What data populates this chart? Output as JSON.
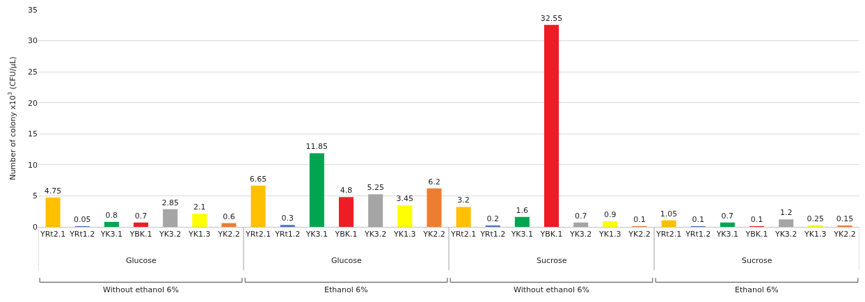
{
  "chart_data": {
    "type": "bar",
    "ylabel": "Number of colony x10$^{3}$ (CFU/µL)",
    "categories": [
      "YRt2.1",
      "YRt1.2",
      "YK3.1",
      "YBK.1",
      "YK3.2",
      "YK1.3",
      "YK2.2",
      "YRt2.1",
      "YRt1.2",
      "YK3.1",
      "YBK.1",
      "YK3.2",
      "YK1.3",
      "YK2.2",
      "YRt2.1",
      "YRt1.2",
      "YK3.1",
      "YBK.1",
      "YK3.2",
      "YK1.3",
      "YK2.2",
      "YRt2.1",
      "YRt1.2",
      "YK3.1",
      "YBK.1",
      "YK3.2",
      "YK1.3",
      "YK2.2"
    ],
    "values": [
      4.75,
      0.05,
      0.8,
      0.7,
      2.85,
      2.1,
      0.6,
      6.65,
      0.3,
      11.85,
      4.8,
      5.25,
      3.45,
      6.2,
      3.2,
      0.2,
      1.6,
      32.55,
      0.7,
      0.9,
      0.1,
      1.05,
      0.1,
      0.7,
      0.1,
      1.2,
      0.25,
      0.15
    ],
    "colors": [
      "#ffc000",
      "#4472c4",
      "#00a550",
      "#ee1c25",
      "#a5a5a5",
      "#ffff00",
      "#ed7d31",
      "#ffc000",
      "#4472c4",
      "#00a550",
      "#ee1c25",
      "#a5a5a5",
      "#ffff00",
      "#ed7d31",
      "#ffc000",
      "#4472c4",
      "#00a550",
      "#ee1c25",
      "#a5a5a5",
      "#ffff00",
      "#ed7d31",
      "#ffc000",
      "#4472c4",
      "#00a550",
      "#ee1c25",
      "#a5a5a5",
      "#ffff00",
      "#ed7d31"
    ],
    "ylim": [
      0,
      35
    ],
    "yticks": [
      0,
      5,
      10,
      15,
      20,
      25,
      30,
      35
    ],
    "grid": "y",
    "data_labels": true,
    "annotations": [
      "Glucose",
      "Glucose",
      "Sucrose",
      "Sucrose",
      "Without ethanol 6%",
      "Ethanol 6%",
      "Without ethanol 6%",
      "Ethanol 6%"
    ]
  }
}
